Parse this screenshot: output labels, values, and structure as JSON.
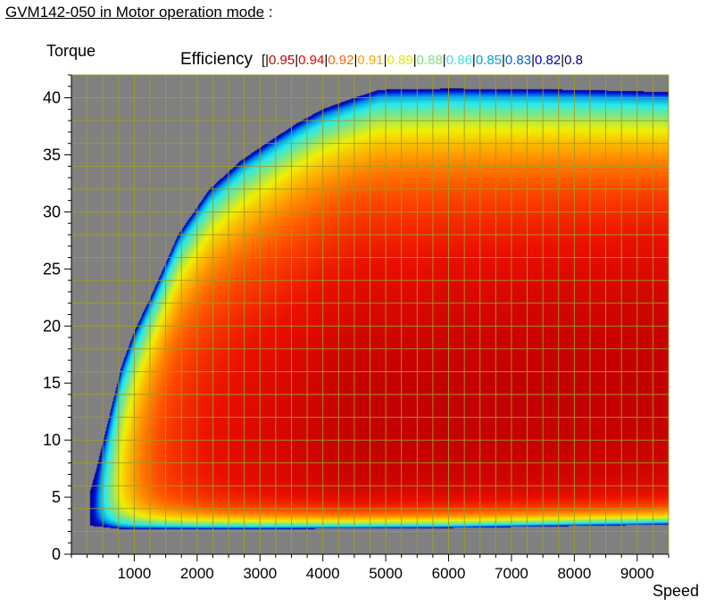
{
  "title": "GVM142-050 in Motor operation mode",
  "title_suffix": ":",
  "colors": {
    "plot_background": "#808080",
    "grid": "#a09d22",
    "legend_label": "#000000"
  },
  "chart_data": {
    "type": "heatmap",
    "title": "GVM142-050 in Motor operation mode",
    "xlabel": "Speed",
    "ylabel": "Torque",
    "xlim": [
      0,
      9500
    ],
    "ylim": [
      0,
      42
    ],
    "x_ticks": [
      1000,
      2000,
      3000,
      4000,
      5000,
      6000,
      7000,
      8000,
      9000
    ],
    "y_ticks": [
      0,
      5,
      10,
      15,
      20,
      25,
      30,
      35,
      40
    ],
    "x_minor_step": 250,
    "y_minor_step": 1,
    "grid": true,
    "legend_placement": "top",
    "legend": {
      "title": "Efficiency",
      "prefix": "[|",
      "levels": [
        {
          "label": "0.95",
          "color": "#c00000"
        },
        {
          "label": "0.94",
          "color": "#e00000"
        },
        {
          "label": "0.92",
          "color": "#ff6000"
        },
        {
          "label": "0.91",
          "color": "#ffa000"
        },
        {
          "label": "0.89",
          "color": "#e8e800"
        },
        {
          "label": "0.88",
          "color": "#80e080"
        },
        {
          "label": "0.86",
          "color": "#40e0e0"
        },
        {
          "label": "0.85",
          "color": "#00a0e0"
        },
        {
          "label": "0.83",
          "color": "#0060d0"
        },
        {
          "label": "0.82",
          "color": "#0000c0"
        },
        {
          "label": "0.8",
          "color": "#000080"
        }
      ]
    },
    "torque_envelope": [
      {
        "speed": 300,
        "torque": 2.5
      },
      {
        "speed": 300,
        "torque": 5.5
      },
      {
        "speed": 400,
        "torque": 7.5
      },
      {
        "speed": 600,
        "torque": 12
      },
      {
        "speed": 800,
        "torque": 16.5
      },
      {
        "speed": 1000,
        "torque": 19.5
      },
      {
        "speed": 1300,
        "torque": 23
      },
      {
        "speed": 1700,
        "torque": 28
      },
      {
        "speed": 2200,
        "torque": 32
      },
      {
        "speed": 2700,
        "torque": 34.5
      },
      {
        "speed": 3100,
        "torque": 36
      },
      {
        "speed": 3600,
        "torque": 37.8
      },
      {
        "speed": 4000,
        "torque": 39
      },
      {
        "speed": 4500,
        "torque": 40
      },
      {
        "speed": 4900,
        "torque": 40.7
      },
      {
        "speed": 6000,
        "torque": 40.8
      },
      {
        "speed": 8000,
        "torque": 40.7
      },
      {
        "speed": 9500,
        "torque": 40.5
      }
    ],
    "lower_boundary": [
      {
        "speed": 300,
        "torque": 2.5
      },
      {
        "speed": 800,
        "torque": 2.2
      },
      {
        "speed": 3000,
        "torque": 2.2
      },
      {
        "speed": 6000,
        "torque": 2.3
      },
      {
        "speed": 9500,
        "torque": 2.6
      }
    ]
  }
}
